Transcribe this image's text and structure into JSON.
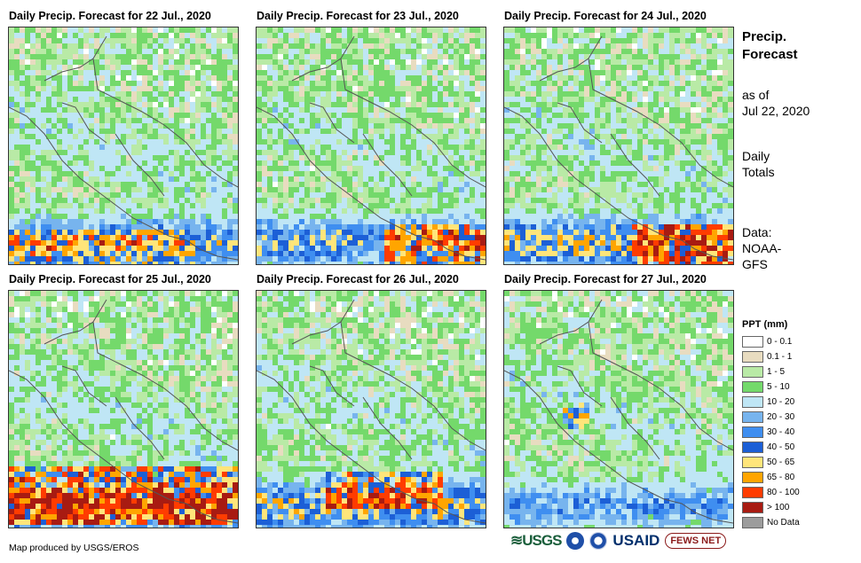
{
  "panels": [
    {
      "title": "Daily Precip. Forecast for 22 Jul., 2020",
      "rain_band": "moderate",
      "storm_cells": "west-coast"
    },
    {
      "title": "Daily Precip. Forecast for 23 Jul., 2020",
      "rain_band": "moderate",
      "storm_cells": "east-coast"
    },
    {
      "title": "Daily Precip. Forecast for 24 Jul., 2020",
      "rain_band": "heavy",
      "storm_cells": "east-coast"
    },
    {
      "title": "Daily Precip. Forecast for 25 Jul., 2020",
      "rain_band": "very-heavy",
      "storm_cells": "pacific"
    },
    {
      "title": "Daily Precip. Forecast for 26 Jul., 2020",
      "rain_band": "heavy",
      "storm_cells": "pacific-center"
    },
    {
      "title": "Daily Precip. Forecast for 27 Jul., 2020",
      "rain_band": "light",
      "storm_cells": "honduras"
    }
  ],
  "side": {
    "title_line1": "Precip.",
    "title_line2": "Forecast",
    "asof_line1": "as of",
    "asof_line2": "Jul 22, 2020",
    "daily_line1": "Daily",
    "daily_line2": "Totals",
    "data_line1": "Data:",
    "data_line2": "NOAA-",
    "data_line3": "GFS"
  },
  "legend": {
    "title": "PPT (mm)",
    "items": [
      {
        "label": "0 - 0.1",
        "color": "#ffffff"
      },
      {
        "label": "0.1 - 1",
        "color": "#e8dcc0"
      },
      {
        "label": "1 - 5",
        "color": "#b9eaa6"
      },
      {
        "label": "5 - 10",
        "color": "#74d96b"
      },
      {
        "label": "10 - 20",
        "color": "#bfe6f5"
      },
      {
        "label": "20 - 30",
        "color": "#77b4ee"
      },
      {
        "label": "30 - 40",
        "color": "#3f8ef0"
      },
      {
        "label": "40 - 50",
        "color": "#1c5fd6"
      },
      {
        "label": "50 - 65",
        "color": "#ffe57a"
      },
      {
        "label": "65 - 80",
        "color": "#ffa500"
      },
      {
        "label": "80 - 100",
        "color": "#ff3c00"
      },
      {
        "label": "> 100",
        "color": "#a81b12"
      },
      {
        "label": "No Data",
        "color": "#9c9c9c"
      }
    ]
  },
  "footer": {
    "credit": "Map produced by USGS/EROS",
    "logo_usgs": "≋USGS",
    "logo_usaid": "USAID",
    "logo_fews": "FEWS NET"
  }
}
